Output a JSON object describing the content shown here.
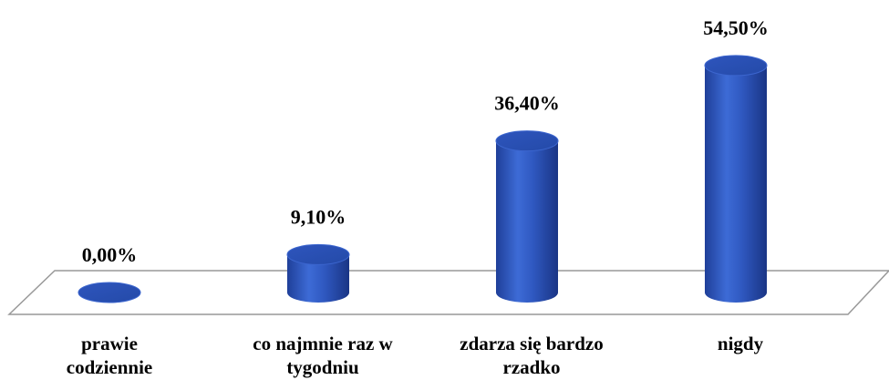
{
  "chart_data": {
    "type": "bar3d",
    "categories": [
      "prawie codziennie",
      "co najmnie raz w tygodniu",
      "zdarza się bardzo rzadko",
      "nigdy"
    ],
    "values": [
      0,
      9.1,
      36.4,
      54.5
    ],
    "value_labels": [
      "0,00%",
      "9,10%",
      "36,40%",
      "54,50%"
    ],
    "color": "#2f58c0"
  }
}
